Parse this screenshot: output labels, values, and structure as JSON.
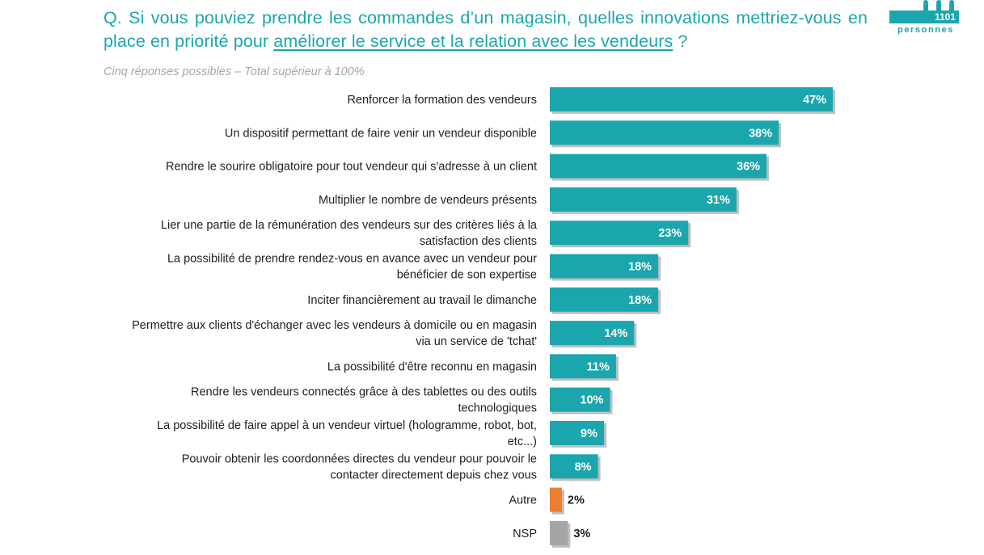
{
  "header": {
    "question_prefix": "Q. Si vous pouviez prendre les commandes d’un magasin, quelles innovations mettriez-vous en place en priorité pour ",
    "question_highlight": "améliorer le service et la relation avec les vendeurs",
    "question_suffix": " ?",
    "subtitle": "Cinq réponses possibles – Total supérieur à 100%",
    "sample_count": "1101",
    "sample_unit": "personnes"
  },
  "colors": {
    "accent": "#1ba6ad",
    "other": "#ed7d31",
    "nsp": "#a5a5a5"
  },
  "chart_data": {
    "type": "bar",
    "orientation": "horizontal",
    "xlim": [
      0,
      47
    ],
    "grid": false,
    "categories": [
      [
        "Renforcer la formation des vendeurs"
      ],
      [
        "Un dispositif permettant de faire venir un vendeur disponible"
      ],
      [
        "Rendre le sourire obligatoire pour tout vendeur qui s'adresse à un client"
      ],
      [
        "Multiplier le nombre de vendeurs présents"
      ],
      [
        "Lier une partie de la rémunération des vendeurs sur des critères liés à la",
        "satisfaction des clients"
      ],
      [
        "La possibilité de prendre rendez-vous en avance avec un vendeur pour",
        "bénéficier de son expertise"
      ],
      [
        "Inciter financièrement au travail le dimanche"
      ],
      [
        "Permettre aux clients d'échanger avec les vendeurs à domicile ou en magasin",
        "via un service de 'tchat'"
      ],
      [
        "La possibilité d'être reconnu en magasin"
      ],
      [
        "Rendre les vendeurs connectés grâce à des tablettes ou des outils",
        "technologiques"
      ],
      [
        "La possibilité de faire appel à un vendeur virtuel (hologramme, robot, bot,",
        "etc...)"
      ],
      [
        "Pouvoir obtenir les coordonnées directes du vendeur pour pouvoir le",
        "contacter directement depuis chez vous"
      ],
      [
        "Autre"
      ],
      [
        "NSP"
      ]
    ],
    "values": [
      47,
      38,
      36,
      31,
      23,
      18,
      18,
      14,
      11,
      10,
      9,
      8,
      2,
      3
    ],
    "labels": [
      "47%",
      "38%",
      "36%",
      "31%",
      "23%",
      "18%",
      "18%",
      "14%",
      "11%",
      "10%",
      "9%",
      "8%",
      "2%",
      "3%"
    ],
    "bar_colors": [
      "#1ba6ad",
      "#1ba6ad",
      "#1ba6ad",
      "#1ba6ad",
      "#1ba6ad",
      "#1ba6ad",
      "#1ba6ad",
      "#1ba6ad",
      "#1ba6ad",
      "#1ba6ad",
      "#1ba6ad",
      "#1ba6ad",
      "#ed7d31",
      "#a5a5a5"
    ]
  }
}
